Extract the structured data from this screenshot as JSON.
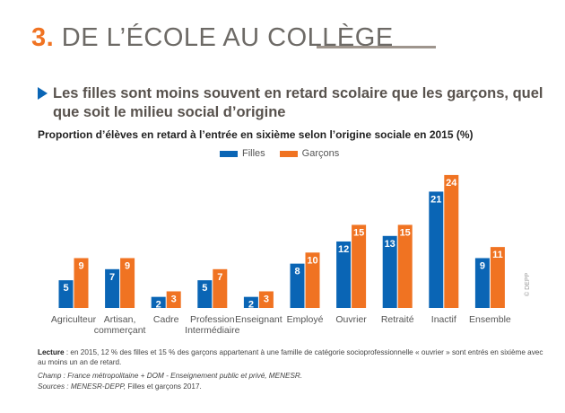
{
  "header": {
    "section_number": "3.",
    "section_title": "DE L’ÉCOLE AU COLLÈGE"
  },
  "headline": {
    "icon": "triangle-right-icon",
    "text": "Les filles sont moins souvent en retard scolaire que les garçons, quel que soit le milieu social d’origine"
  },
  "chart_data": {
    "type": "bar",
    "title": "Proportion d’élèves en retard à l’entrée en sixième selon l’origine sociale en 2015 (%)",
    "xlabel": "",
    "ylabel": "",
    "ylim": [
      0,
      25
    ],
    "grid": false,
    "legend_position": "top-center",
    "categories": [
      "Agriculteur",
      "Artisan, commerçant",
      "Cadre",
      "Profession Intermédiaire",
      "Enseignant",
      "Employé",
      "Ouvrier",
      "Retraité",
      "Inactif",
      "Ensemble"
    ],
    "category_lines": [
      [
        "Agriculteur"
      ],
      [
        "Artisan,",
        "commerçant"
      ],
      [
        "Cadre"
      ],
      [
        "Profession",
        "Intermédiaire"
      ],
      [
        "Enseignant"
      ],
      [
        "Employé"
      ],
      [
        "Ouvrier"
      ],
      [
        "Retraité"
      ],
      [
        "Inactif"
      ],
      [
        "Ensemble"
      ]
    ],
    "series": [
      {
        "name": "Filles",
        "color": "#0a65b5",
        "values": [
          5,
          7,
          2,
          5,
          2,
          8,
          12,
          13,
          21,
          9
        ]
      },
      {
        "name": "Garçons",
        "color": "#f07322",
        "values": [
          9,
          9,
          3,
          7,
          3,
          10,
          15,
          15,
          24,
          11
        ]
      }
    ]
  },
  "credit": "© DEPP",
  "notes": {
    "lecture_label": "Lecture",
    "lecture_text": " : en 2015, 12 % des filles et 15 % des garçons appartenant à une famille de catégorie socioprofessionnelle « ouvrier » sont entrés en sixième avec au moins un an de retard.",
    "champ": "Champ : France métropolitaine + DOM - Enseignement public et privé, MENESR.",
    "sources_label": "Sources : MENESR-DEPP,",
    "sources_text": " Filles et garçons 2017."
  }
}
